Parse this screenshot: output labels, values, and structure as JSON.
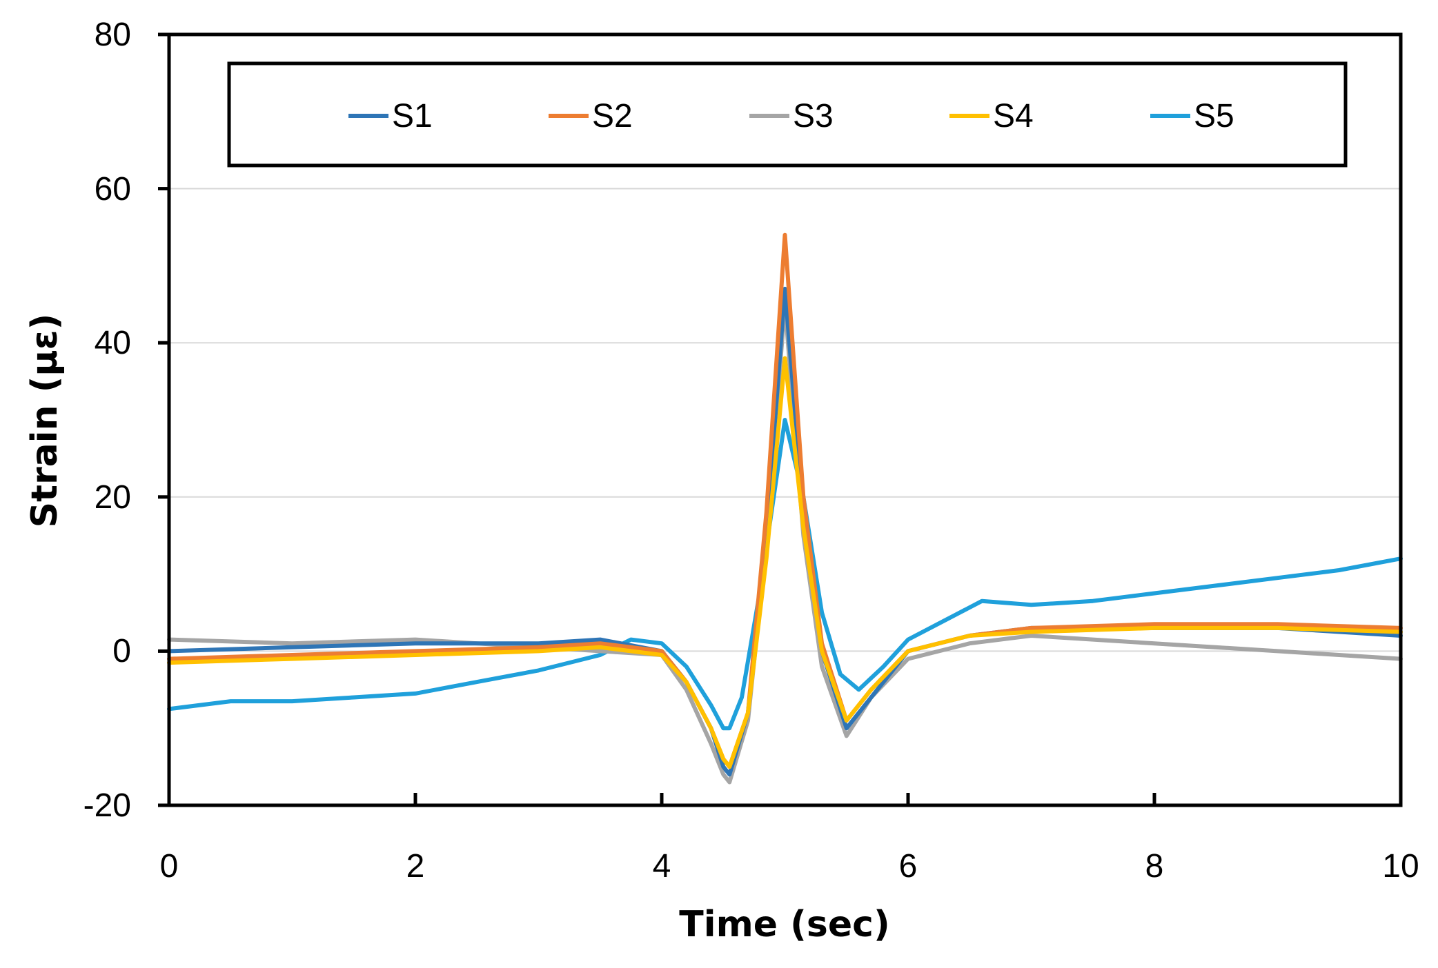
{
  "chart_data": {
    "type": "line",
    "title": "",
    "xlabel": "Time (sec)",
    "ylabel": "Strain (με)",
    "xlim": [
      0,
      10
    ],
    "ylim": [
      -20,
      80
    ],
    "xticks": [
      0,
      2,
      4,
      6,
      8,
      10
    ],
    "yticks": [
      -20,
      0,
      20,
      40,
      60,
      80
    ],
    "xtick_labels": [
      "0",
      "2",
      "4",
      "6",
      "8",
      "10"
    ],
    "ytick_labels": [
      "-20",
      "0",
      "20",
      "40",
      "60",
      "80"
    ],
    "grid": "horizontal",
    "legend": "top, boxed, single row",
    "series": [
      {
        "name": "S1",
        "color": "#2e75b6",
        "x": [
          0,
          1,
          2,
          3,
          3.5,
          4,
          4.2,
          4.4,
          4.5,
          4.55,
          4.7,
          4.85,
          5.0,
          5.15,
          5.3,
          5.5,
          5.7,
          6.0,
          6.5,
          7,
          8,
          9,
          10
        ],
        "y": [
          0,
          0.5,
          1,
          1,
          1.5,
          0,
          -4,
          -10,
          -15,
          -16,
          -8,
          15,
          47,
          18,
          0,
          -10,
          -6,
          0,
          2,
          3,
          3,
          3,
          2
        ]
      },
      {
        "name": "S2",
        "color": "#ed7d31",
        "x": [
          0,
          1,
          2,
          3,
          3.5,
          4,
          4.2,
          4.4,
          4.5,
          4.55,
          4.7,
          4.85,
          5.0,
          5.15,
          5.3,
          5.5,
          5.7,
          6.0,
          6.5,
          7,
          8,
          9,
          10
        ],
        "y": [
          -1,
          -0.5,
          0,
          0.5,
          1,
          0,
          -4,
          -10,
          -14,
          -15,
          -8,
          18,
          54,
          20,
          1,
          -9,
          -5,
          0,
          2,
          3,
          3.5,
          3.5,
          3
        ]
      },
      {
        "name": "S3",
        "color": "#a5a5a5",
        "x": [
          0,
          1,
          2,
          3,
          3.5,
          4,
          4.2,
          4.4,
          4.5,
          4.55,
          4.7,
          4.85,
          5.0,
          5.15,
          5.3,
          5.5,
          5.7,
          6.0,
          6.5,
          7,
          8,
          9,
          10
        ],
        "y": [
          1.5,
          1,
          1.5,
          0.5,
          0,
          -0.5,
          -5,
          -12,
          -16,
          -17,
          -9,
          14,
          45,
          15,
          -2,
          -11,
          -6,
          -1,
          1,
          2,
          1,
          0,
          -1
        ]
      },
      {
        "name": "S4",
        "color": "#ffc000",
        "x": [
          0,
          1,
          2,
          3,
          3.5,
          4,
          4.2,
          4.4,
          4.5,
          4.55,
          4.7,
          4.85,
          5.0,
          5.15,
          5.3,
          5.5,
          5.7,
          6.0,
          6.5,
          7,
          8,
          9,
          10
        ],
        "y": [
          -1.5,
          -1,
          -0.5,
          0,
          0.5,
          -0.5,
          -4,
          -10,
          -14,
          -15,
          -8,
          12,
          38,
          16,
          0,
          -9,
          -5,
          0,
          2,
          2.5,
          3,
          3,
          2.5
        ]
      },
      {
        "name": "S5",
        "color": "#1fa0db",
        "x": [
          0,
          0.5,
          1,
          1.5,
          2,
          2.5,
          3,
          3.5,
          3.75,
          4,
          4.2,
          4.4,
          4.5,
          4.55,
          4.65,
          4.8,
          5.0,
          5.15,
          5.3,
          5.45,
          5.6,
          5.8,
          6.0,
          6.3,
          6.6,
          7,
          7.5,
          8,
          8.5,
          9,
          9.5,
          10
        ],
        "y": [
          -7.5,
          -6.5,
          -6.5,
          -6,
          -5.5,
          -4,
          -2.5,
          -0.5,
          1.5,
          1,
          -2,
          -7,
          -10,
          -10,
          -6,
          8,
          30,
          20,
          5,
          -3,
          -5,
          -2,
          1.5,
          4,
          6.5,
          6,
          6.5,
          7.5,
          8.5,
          9.5,
          10.5,
          12
        ]
      }
    ]
  }
}
